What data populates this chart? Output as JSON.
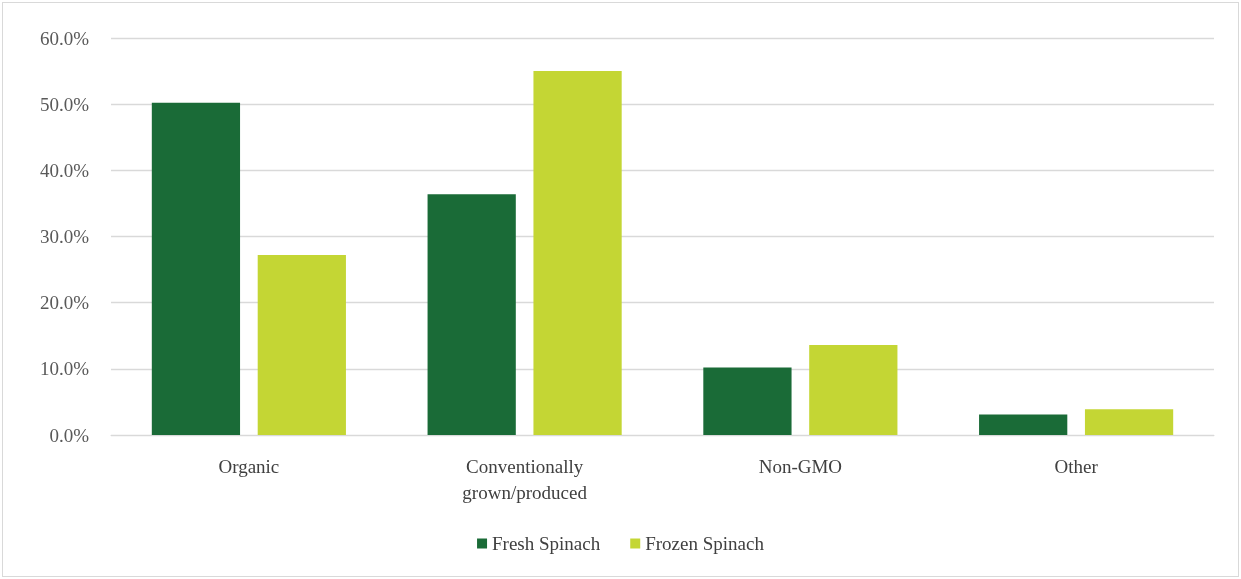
{
  "chart_data": {
    "type": "bar",
    "categories": [
      "Organic",
      "Conventionally\ngrown/produced",
      "Non-GMO",
      "Other"
    ],
    "series": [
      {
        "name": "Fresh Spinach",
        "color": "#1a6b37",
        "values": [
          50.2,
          36.4,
          10.2,
          3.1
        ]
      },
      {
        "name": "Frozen Spinach",
        "color": "#c4d634",
        "values": [
          27.2,
          55.0,
          13.6,
          3.9
        ]
      }
    ],
    "ylim": [
      0,
      60
    ],
    "yticks": [
      {
        "value": 0,
        "label": "0.0%"
      },
      {
        "value": 10,
        "label": "10.0%"
      },
      {
        "value": 20,
        "label": "20.0%"
      },
      {
        "value": 30,
        "label": "30.0%"
      },
      {
        "value": 40,
        "label": "40.0%"
      },
      {
        "value": 50,
        "label": "50.0%"
      },
      {
        "value": 60,
        "label": "60.0%"
      }
    ],
    "grid": "y",
    "legend": "bottom"
  }
}
